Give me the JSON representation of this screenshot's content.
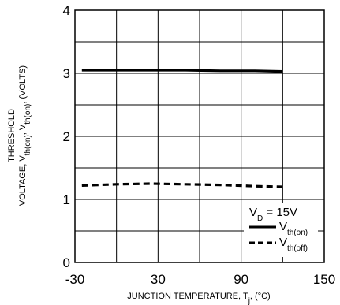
{
  "chart_data": {
    "type": "line",
    "title": "",
    "xlabel": "JUNCTION TEMPERATURE, T",
    "xlabel_sub": "j",
    "xlabel_suffix": ", (°C)",
    "ylabel_line1": "THRESHOLD",
    "ylabel_line2": {
      "prefix": "VOLTAGE, V",
      "sub1": "th(on)",
      "middle": ", V",
      "sub2": "th(on)",
      "suffix": ", (VOLTS)"
    },
    "xlim": [
      -30,
      150
    ],
    "ylim": [
      0,
      4
    ],
    "x_ticks": [
      {
        "value": -30,
        "label": "-30"
      },
      {
        "value": 30,
        "label": "30"
      },
      {
        "value": 90,
        "label": "90"
      },
      {
        "value": 150,
        "label": "150"
      }
    ],
    "y_ticks": [
      {
        "value": 0,
        "label": "0"
      },
      {
        "value": 1,
        "label": "1"
      },
      {
        "value": 2,
        "label": "2"
      },
      {
        "value": 3,
        "label": "3"
      },
      {
        "value": 4,
        "label": "4"
      }
    ],
    "x_grid": [
      -30,
      0,
      30,
      60,
      90,
      120,
      150
    ],
    "y_grid": [
      0,
      0.5,
      1,
      1.5,
      2,
      2.5,
      3,
      3.5,
      4
    ],
    "grid": true,
    "legend": {
      "placement": "bottom-right",
      "condition": {
        "prefix": "V",
        "sub": "D",
        "suffix": " = 15V"
      }
    },
    "series": [
      {
        "name": "V",
        "name_sub": "th(on)",
        "style": "solid",
        "color": "#000000",
        "x": [
          -25,
          0,
          25,
          50,
          75,
          100,
          120
        ],
        "y": [
          3.05,
          3.05,
          3.05,
          3.05,
          3.04,
          3.04,
          3.03
        ]
      },
      {
        "name": "V",
        "name_sub": "th(off)",
        "style": "dashed",
        "color": "#000000",
        "x": [
          -25,
          0,
          25,
          50,
          75,
          100,
          120
        ],
        "y": [
          1.22,
          1.24,
          1.25,
          1.24,
          1.23,
          1.21,
          1.2
        ]
      }
    ]
  }
}
